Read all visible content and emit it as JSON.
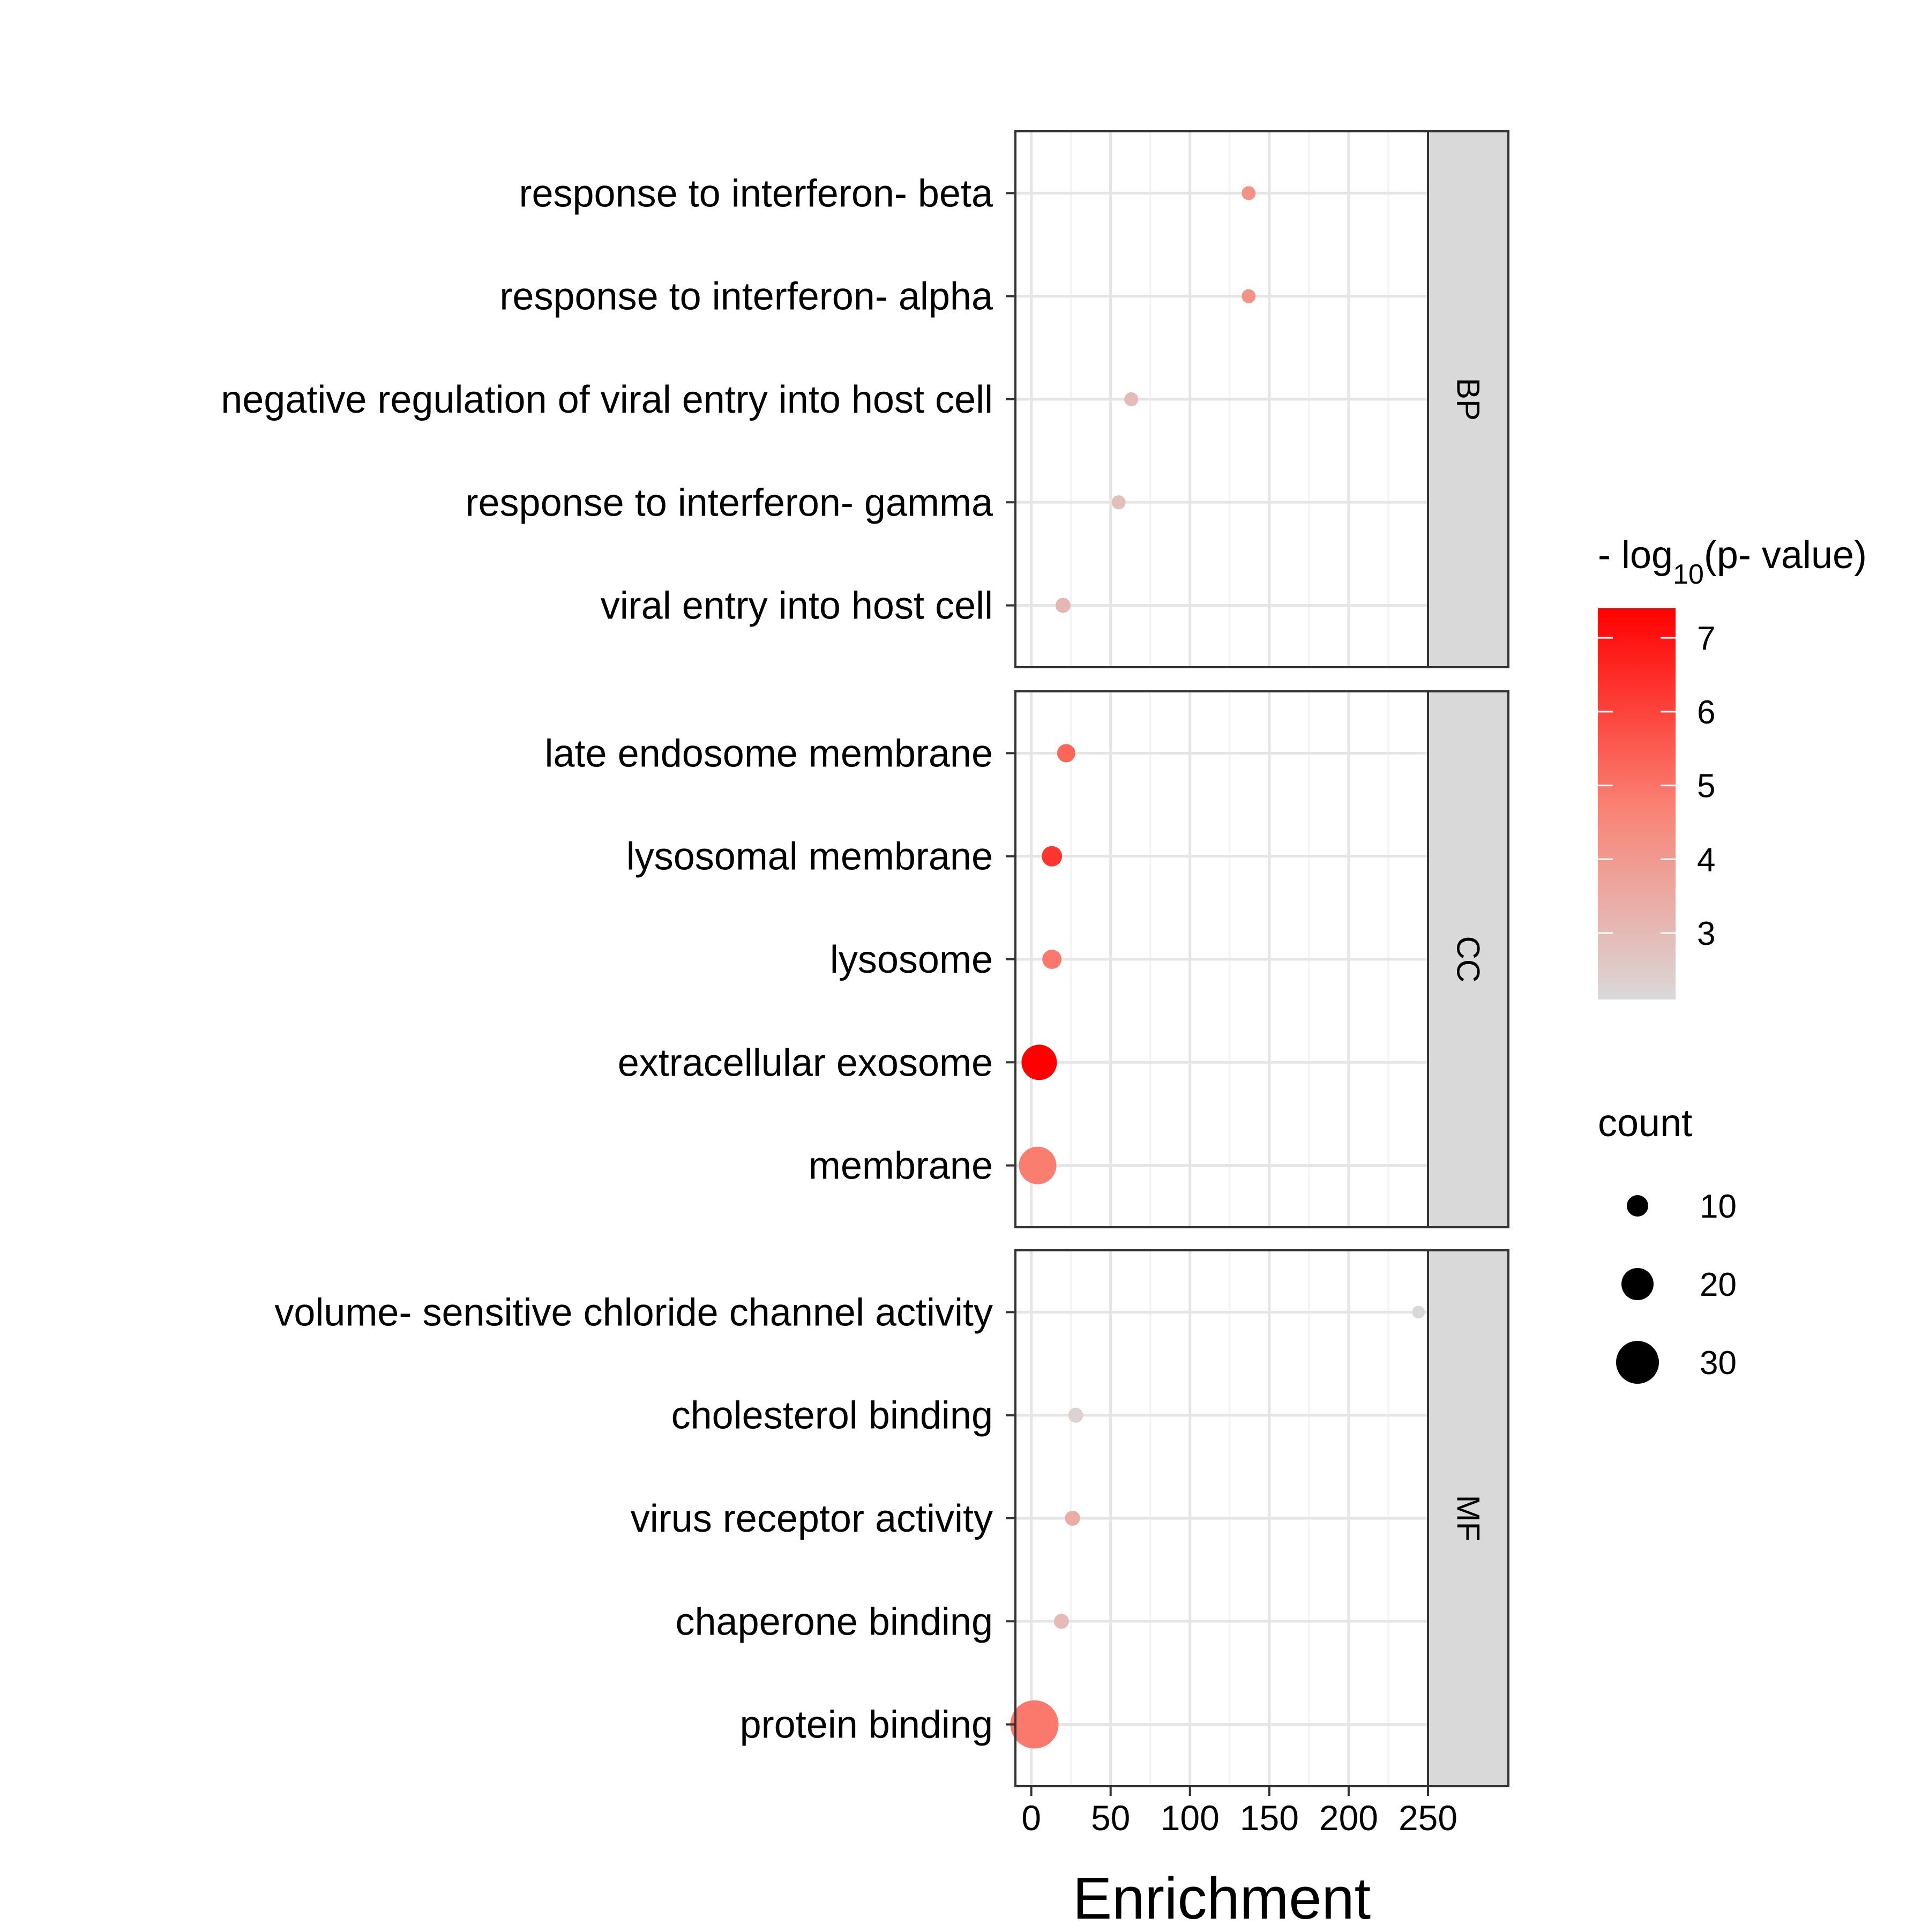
{
  "chart_data": {
    "type": "scatter",
    "xlabel": "Enrichment",
    "ylabel": "",
    "xlim": [
      -10,
      250
    ],
    "x_ticks": [
      0,
      50,
      100,
      150,
      200,
      250
    ],
    "x_tick_labels": [
      "0",
      "50",
      "100",
      "150",
      "200",
      "250"
    ],
    "grid": true,
    "legend_position": "right",
    "color_legend": {
      "title_prefix": "- log",
      "title_subscript": "10",
      "title_suffix": "(p- value)",
      "min": 2.1,
      "max": 7.4,
      "low_color": "#d9d9d9",
      "high_color": "#ff0000",
      "ticks": [
        3,
        4,
        5,
        6,
        7
      ],
      "tick_labels": [
        "3",
        "4",
        "5",
        "6",
        "7"
      ]
    },
    "size_legend": {
      "title": "count",
      "values": [
        10,
        20,
        30
      ],
      "labels": [
        "10",
        "20",
        "30"
      ]
    },
    "panels": [
      {
        "label": "BP",
        "terms": [
          {
            "term": "response to interferon- beta",
            "enrichment": 137,
            "log_p": 4.2,
            "count": 3
          },
          {
            "term": "response to interferon- alpha",
            "enrichment": 137,
            "log_p": 4.2,
            "count": 3
          },
          {
            "term": "negative regulation of viral entry into host cell",
            "enrichment": 63,
            "log_p": 3.0,
            "count": 3
          },
          {
            "term": "response to interferon- gamma",
            "enrichment": 55,
            "log_p": 2.9,
            "count": 3
          },
          {
            "term": "viral entry into host cell",
            "enrichment": 20,
            "log_p": 3.1,
            "count": 4
          }
        ]
      },
      {
        "label": "CC",
        "terms": [
          {
            "term": "late endosome membrane",
            "enrichment": 22,
            "log_p": 5.3,
            "count": 7
          },
          {
            "term": "lysosomal membrane",
            "enrichment": 13,
            "log_p": 6.3,
            "count": 9
          },
          {
            "term": "lysosome",
            "enrichment": 13,
            "log_p": 4.9,
            "count": 8
          },
          {
            "term": "extracellular exosome",
            "enrichment": 5,
            "log_p": 7.4,
            "count": 23
          },
          {
            "term": "membrane",
            "enrichment": 4,
            "log_p": 4.8,
            "count": 25
          }
        ]
      },
      {
        "label": "MF",
        "terms": [
          {
            "term": "volume- sensitive chloride channel activity",
            "enrichment": 244,
            "log_p": 2.1,
            "count": 2
          },
          {
            "term": "cholesterol binding",
            "enrichment": 28,
            "log_p": 2.3,
            "count": 4
          },
          {
            "term": "virus receptor activity",
            "enrichment": 26,
            "log_p": 3.4,
            "count": 4
          },
          {
            "term": "chaperone binding",
            "enrichment": 19,
            "log_p": 3.0,
            "count": 4
          },
          {
            "term": "protein binding",
            "enrichment": 2,
            "log_p": 4.9,
            "count": 35
          }
        ]
      }
    ]
  }
}
